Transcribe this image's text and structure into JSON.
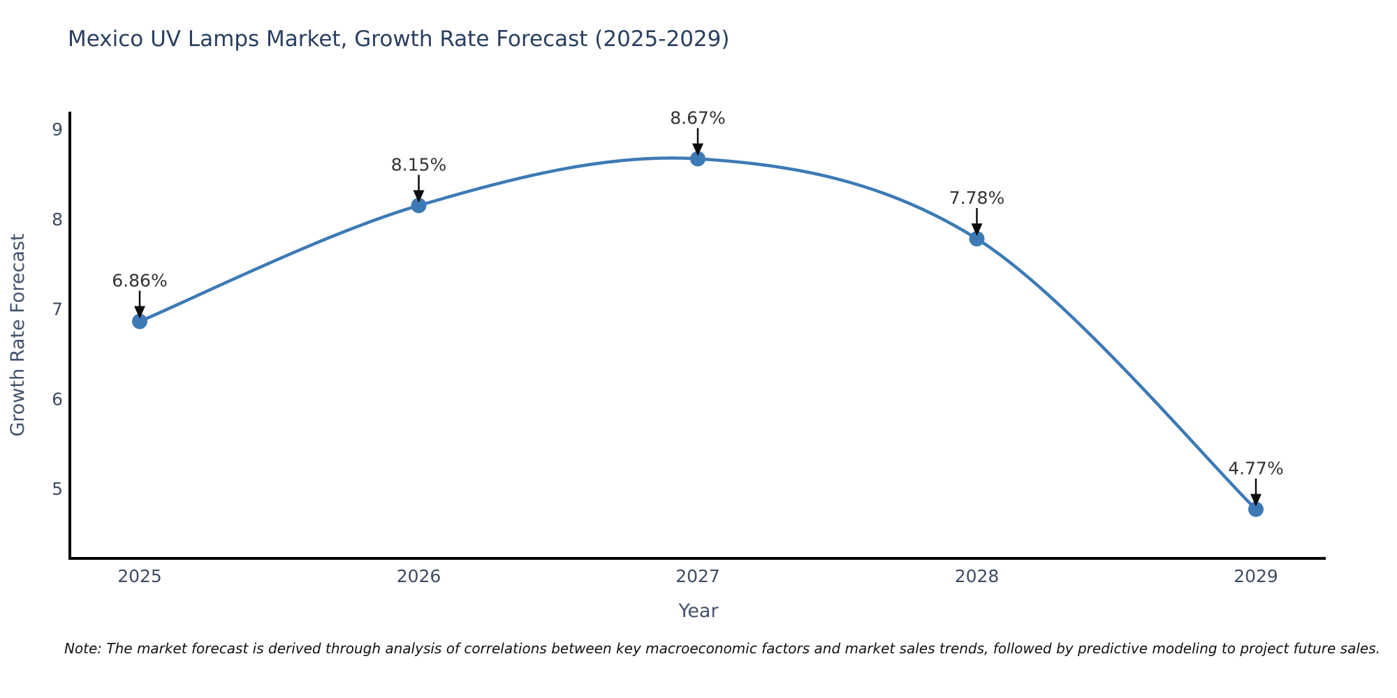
{
  "title": "Mexico UV Lamps Market, Growth Rate Forecast (2025-2029)",
  "note": "Note: The market forecast is derived through analysis of correlations between key macroeconomic factors and market sales trends, followed by predictive modeling to project future sales.",
  "chart_data": {
    "type": "line",
    "title": "Mexico UV Lamps Market, Growth Rate Forecast (2025-2029)",
    "xlabel": "Year",
    "ylabel": "Growth Rate Forecast",
    "x": [
      2025,
      2026,
      2027,
      2028,
      2029
    ],
    "series": [
      {
        "name": "Growth Rate Forecast",
        "values": [
          6.86,
          8.15,
          8.67,
          7.78,
          4.77
        ]
      }
    ],
    "point_labels": [
      "6.86%",
      "8.15%",
      "8.67%",
      "7.78%",
      "4.77%"
    ],
    "xticks": [
      "2025",
      "2026",
      "2027",
      "2028",
      "2029"
    ],
    "yticks": [
      9,
      8,
      7,
      6,
      5
    ],
    "ylim": [
      4.1,
      9.2
    ],
    "grid": false,
    "legend_position": "none",
    "line_shape": "spline",
    "colors": {
      "line": "#3d7ab5",
      "marker": "#3d7ab5",
      "spine": "#000000",
      "arrow": "#0d0d0d",
      "annotation_text": "#333333",
      "tick_text": "#3d4d63",
      "axis_label_text": "#42526b",
      "title_text": "#2a3f5f",
      "background": "#ffffff"
    }
  }
}
